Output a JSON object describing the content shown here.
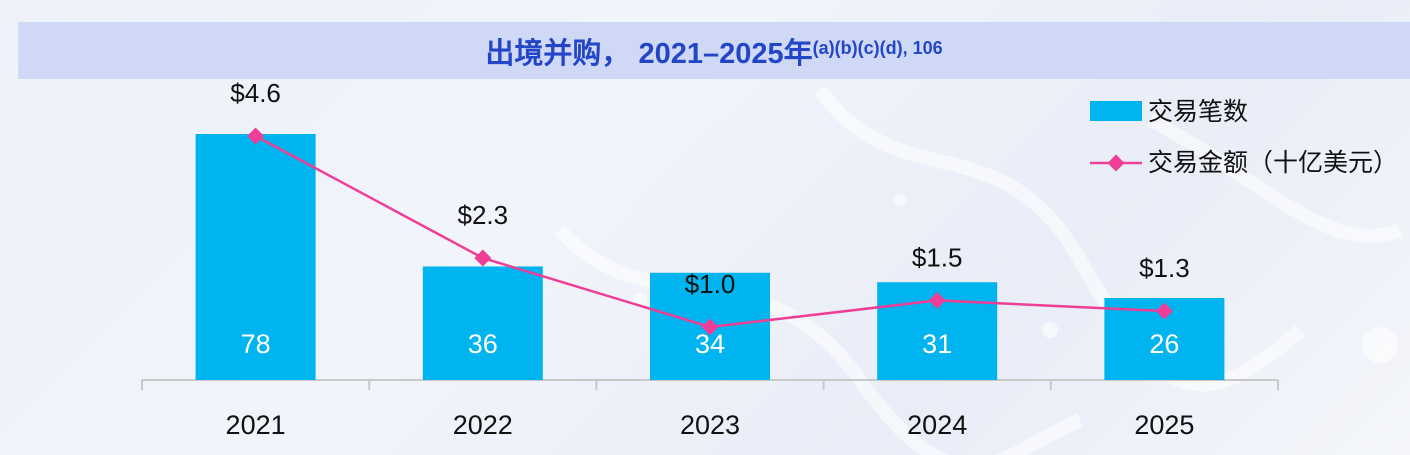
{
  "chart_data": {
    "type": "bar",
    "title": "出境并购， 2021–2025年",
    "title_sup": "(a)(b)(c)(d), 106",
    "categories": [
      "2021",
      "2022",
      "2023",
      "2024",
      "2025"
    ],
    "series": [
      {
        "name": "交易笔数",
        "type": "bar",
        "values": [
          78,
          36,
          34,
          31,
          26
        ],
        "labels": [
          "78",
          "36",
          "34",
          "31",
          "26"
        ],
        "color": "#00b4ef"
      },
      {
        "name": "交易金额（十亿美元）",
        "type": "line",
        "values": [
          4.6,
          2.3,
          1.0,
          1.5,
          1.3
        ],
        "labels": [
          "$4.6",
          "$2.3",
          "$1.0",
          "$1.5",
          "$1.3"
        ],
        "color": "#ee3e96"
      }
    ],
    "bar_axis_max": 78,
    "line_axis_max": 4.6,
    "grid": false,
    "legend_position": "top-right"
  }
}
